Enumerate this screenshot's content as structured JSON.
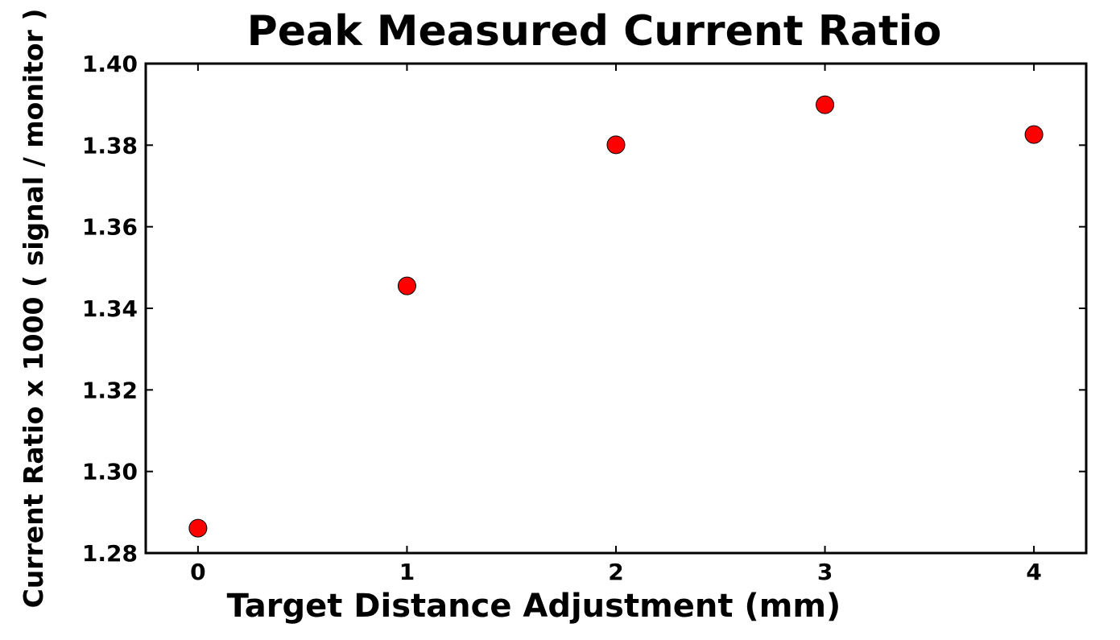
{
  "chart_data": {
    "type": "scatter",
    "title": "Peak Measured Current Ratio",
    "xlabel": "Target Distance Adjustment (mm)",
    "ylabel": "Current Ratio x 1000 ( signal / monitor )",
    "series": [
      {
        "color": "#ff0000",
        "x": [
          0,
          1,
          2,
          3,
          4
        ],
        "values": [
          1.2861,
          1.3455,
          1.3801,
          1.3899,
          1.3826
        ]
      }
    ],
    "xlim": [
      -0.25,
      4.25
    ],
    "xticks": [
      0,
      1,
      2,
      3,
      4
    ],
    "ylim": [
      1.28,
      1.4
    ],
    "yticks": [
      1.28,
      {
        "value": 1.3,
        "label": "1.30"
      },
      1.32,
      1.34,
      1.36,
      1.38,
      {
        "value": 1.4,
        "label": "1.40"
      }
    ]
  }
}
